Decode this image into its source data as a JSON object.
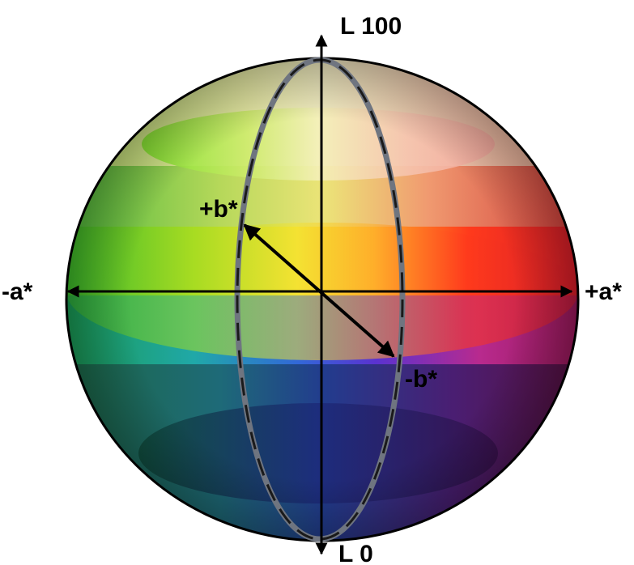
{
  "labels": {
    "l_top": "L 100",
    "l_bottom": "L 0",
    "a_neg": "-a*",
    "a_pos": "+a*",
    "b_pos": "+b*",
    "b_neg": "-b*"
  },
  "colors": {
    "outline": "#000000",
    "axis": "#000000",
    "meridian_fill": "#6f7580",
    "meridian_dash": "#1a1a1a",
    "background": "#ffffff"
  },
  "regions": {
    "upper": {
      "left": "#9be03a",
      "center": "#efe9a0",
      "right": "#eeb296"
    },
    "equator": {
      "left": "#49c22a",
      "center": "#f0e04a",
      "right": "#e82a28"
    },
    "lower_mid": {
      "left": "#1f8a50",
      "center": "#3250c8",
      "right": "#8a1e5a"
    },
    "bottom": {
      "left": "#0f4a38",
      "center": "#1a2c78",
      "right": "#3a1040"
    }
  }
}
